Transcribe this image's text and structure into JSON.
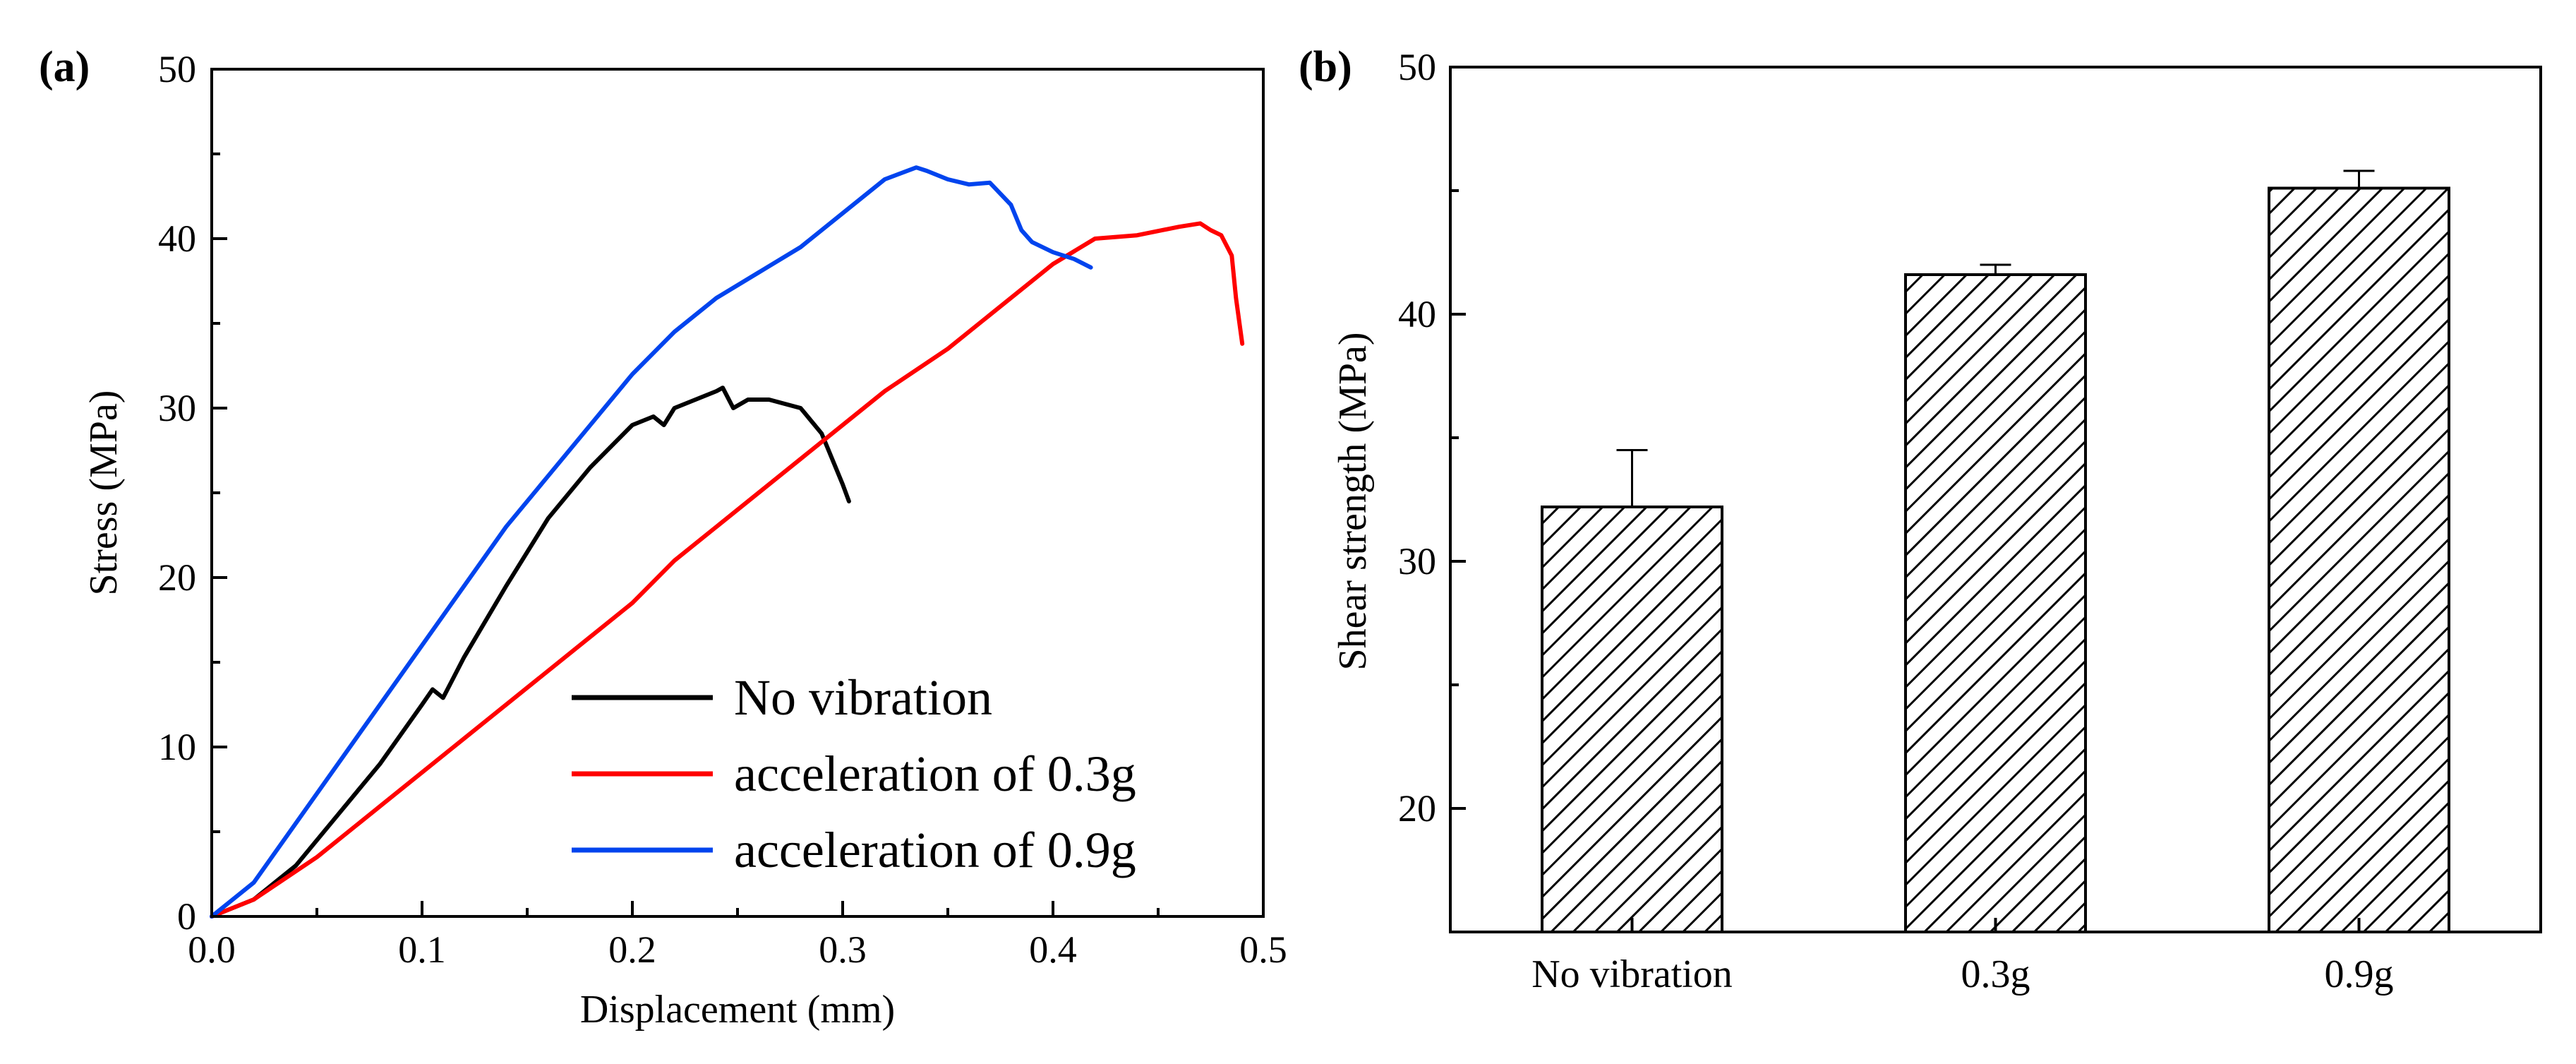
{
  "chart_data": [
    {
      "panel_label": "(a)",
      "type": "line",
      "title": "",
      "xlabel": "Displacement (mm)",
      "ylabel": "Stress (MPa)",
      "xlim": [
        0.0,
        0.5
      ],
      "ylim": [
        0,
        50
      ],
      "xticks": [
        0.0,
        0.1,
        0.2,
        0.3,
        0.4,
        0.5
      ],
      "xtick_labels": [
        "0.0",
        "0.1",
        "0.2",
        "0.3",
        "0.4",
        "0.5"
      ],
      "yticks": [
        0,
        10,
        20,
        30,
        40,
        50
      ],
      "ytick_labels": [
        "0",
        "10",
        "20",
        "30",
        "40",
        "50"
      ],
      "grid": false,
      "legend_position": "bottom-right",
      "series": [
        {
          "name": "No vibration",
          "color": "#000000",
          "x": [
            0.0,
            0.02,
            0.04,
            0.06,
            0.08,
            0.1,
            0.105,
            0.11,
            0.12,
            0.14,
            0.16,
            0.18,
            0.2,
            0.21,
            0.215,
            0.22,
            0.23,
            0.24,
            0.243,
            0.248,
            0.255,
            0.265,
            0.28,
            0.29,
            0.295,
            0.3,
            0.303
          ],
          "y": [
            0,
            1.0,
            3.0,
            6.0,
            9.0,
            12.5,
            13.4,
            12.9,
            15.3,
            19.5,
            23.5,
            26.5,
            29.0,
            29.5,
            29.0,
            30.0,
            30.5,
            31.0,
            31.2,
            30.0,
            30.5,
            30.5,
            30.0,
            28.5,
            27.0,
            25.5,
            24.5
          ]
        },
        {
          "name": "acceleration of 0.3g",
          "color": "#ff0000",
          "x": [
            0.0,
            0.02,
            0.05,
            0.08,
            0.1,
            0.12,
            0.15,
            0.18,
            0.2,
            0.22,
            0.25,
            0.28,
            0.3,
            0.32,
            0.35,
            0.38,
            0.4,
            0.42,
            0.44,
            0.46,
            0.47,
            0.475,
            0.48,
            0.485,
            0.487,
            0.49
          ],
          "y": [
            0,
            1.0,
            3.5,
            6.5,
            8.5,
            10.5,
            13.5,
            16.5,
            18.5,
            21.0,
            24.0,
            27.0,
            29.0,
            31.0,
            33.5,
            36.5,
            38.5,
            40.0,
            40.2,
            40.7,
            40.9,
            40.5,
            40.2,
            39.0,
            36.5,
            33.8
          ]
        },
        {
          "name": "acceleration of 0.9g",
          "color": "#0044ee",
          "x": [
            0.0,
            0.02,
            0.04,
            0.06,
            0.08,
            0.1,
            0.12,
            0.14,
            0.16,
            0.18,
            0.2,
            0.22,
            0.24,
            0.26,
            0.28,
            0.3,
            0.32,
            0.335,
            0.34,
            0.35,
            0.36,
            0.37,
            0.38,
            0.385,
            0.39,
            0.4,
            0.41,
            0.418
          ],
          "y": [
            0,
            2.0,
            5.5,
            9.0,
            12.5,
            16.0,
            19.5,
            23.0,
            26.0,
            29.0,
            32.0,
            34.5,
            36.5,
            38.0,
            39.5,
            41.5,
            43.5,
            44.2,
            44.0,
            43.5,
            43.2,
            43.3,
            42.0,
            40.5,
            39.8,
            39.2,
            38.8,
            38.3
          ]
        }
      ]
    },
    {
      "panel_label": "(b)",
      "type": "bar",
      "title": "",
      "xlabel": "",
      "ylabel": "Shear strength (MPa)",
      "ylim": [
        15,
        50
      ],
      "yticks": [
        20,
        30,
        40,
        50
      ],
      "ytick_labels": [
        "20",
        "30",
        "40",
        "50"
      ],
      "grid": false,
      "pattern": "diagonal-hatch",
      "categories": [
        "No vibration",
        "0.3g",
        "0.9g"
      ],
      "values": [
        32.2,
        41.6,
        45.1
      ],
      "errors": [
        2.3,
        0.4,
        0.7
      ]
    }
  ]
}
